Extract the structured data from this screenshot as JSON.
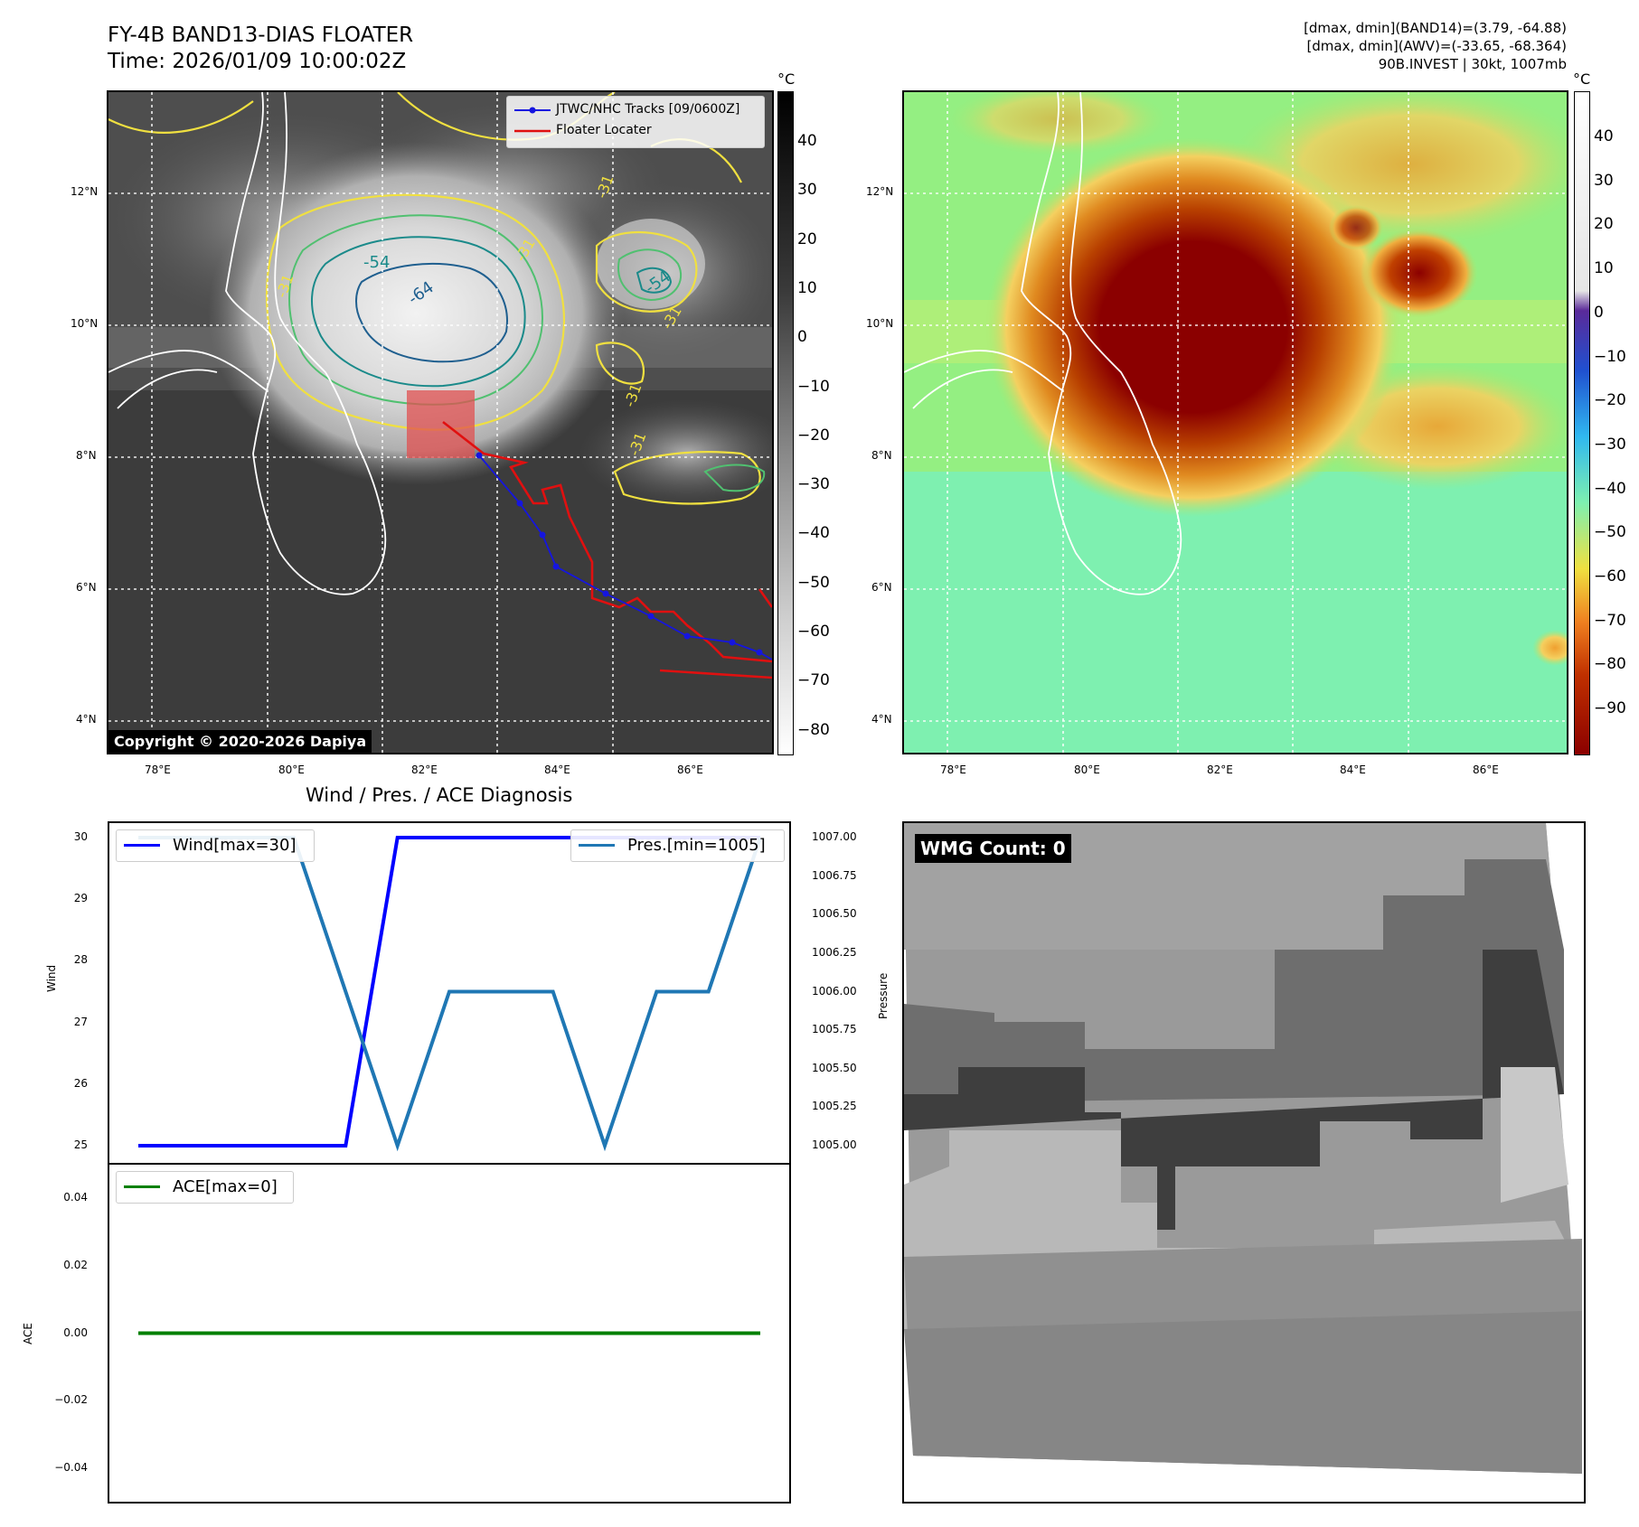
{
  "header": {
    "title_line1": "FY-4B BAND13-DIAS FLOATER",
    "title_line2": "Time: 2026/01/09 10:00:02Z",
    "meta_line1": "[dmax, dmin](BAND14)=(3.79, -64.88)",
    "meta_line2": "[dmax, dmin](AWV)=(-33.65, -68.364)",
    "meta_line3": "90B.INVEST | 30kt, 1007mb"
  },
  "map": {
    "lon_ticks": [
      "78°E",
      "80°E",
      "82°E",
      "84°E",
      "86°E"
    ],
    "lat_ticks": [
      "12°N",
      "10°N",
      "8°N",
      "6°N",
      "4°N"
    ],
    "unit": "°C",
    "copyright": "Copyright © 2020-2026 Dapiya",
    "legend": {
      "track_label": "JTWC/NHC Tracks [09/0600Z]",
      "locator_label": "Floater Locater"
    },
    "contour_labels": [
      "-54",
      "-64",
      "-31",
      "-31",
      "-54",
      "-31",
      "-31",
      "-31",
      "-31"
    ],
    "cb1_ticks": [
      "40",
      "30",
      "20",
      "10",
      "0",
      "−10",
      "−20",
      "−30",
      "−40",
      "−50",
      "−60",
      "−70",
      "−80"
    ],
    "cb2_ticks": [
      "40",
      "30",
      "20",
      "10",
      "0",
      "−10",
      "−20",
      "−30",
      "−40",
      "−50",
      "−60",
      "−70",
      "−80",
      "−90"
    ],
    "colors": {
      "track": "#1515e0",
      "locator": "#e01010",
      "contour_yellow": "#f0e040",
      "contour_green": "#50c070",
      "contour_teal": "#1a8a8a"
    }
  },
  "diagnosis": {
    "title": "Wind / Pres. / ACE Diagnosis",
    "wind_legend": "Wind[max=30]",
    "pres_legend": "Pres.[min=1005]",
    "ace_legend": "ACE[max=0]",
    "wind_axis_label": "Wind",
    "pres_axis_label": "Pressure",
    "ace_axis_label": "ACE",
    "wind_ticks": [
      "30",
      "29",
      "28",
      "27",
      "26",
      "25"
    ],
    "pres_ticks": [
      "1007.00",
      "1006.75",
      "1006.50",
      "1006.25",
      "1006.00",
      "1005.75",
      "1005.50",
      "1005.25",
      "1005.00"
    ],
    "ace_ticks": [
      "0.04",
      "0.02",
      "0.00",
      "−0.02",
      "−0.04"
    ]
  },
  "wmg": {
    "count_label": "WMG Count: 0"
  },
  "chart_data": [
    {
      "type": "line",
      "series": [
        {
          "name": "Wind[max=30]",
          "color": "#0000ff",
          "values": [
            25,
            25,
            25,
            25,
            25,
            30,
            30,
            30,
            30,
            30,
            30,
            30,
            30
          ]
        },
        {
          "name": "Pres.[min=1005]",
          "color": "#1f77b4",
          "values": [
            1007,
            1007,
            1007,
            1007,
            1006,
            1005,
            1006,
            1006,
            1006,
            1005,
            1006,
            1006,
            1007
          ]
        }
      ],
      "x": [
        0,
        1,
        2,
        3,
        4,
        5,
        6,
        7,
        8,
        9,
        10,
        11,
        12
      ],
      "ylabel": "Wind",
      "ylim": [
        25,
        30
      ],
      "y2label": "Pressure",
      "y2lim": [
        1005,
        1007
      ]
    },
    {
      "type": "line",
      "series": [
        {
          "name": "ACE[max=0]",
          "color": "#008000",
          "values": [
            0,
            0,
            0,
            0,
            0,
            0,
            0,
            0,
            0,
            0,
            0,
            0,
            0
          ]
        }
      ],
      "x": [
        0,
        1,
        2,
        3,
        4,
        5,
        6,
        7,
        8,
        9,
        10,
        11,
        12
      ],
      "ylabel": "ACE",
      "ylim": [
        -0.05,
        0.05
      ]
    }
  ]
}
